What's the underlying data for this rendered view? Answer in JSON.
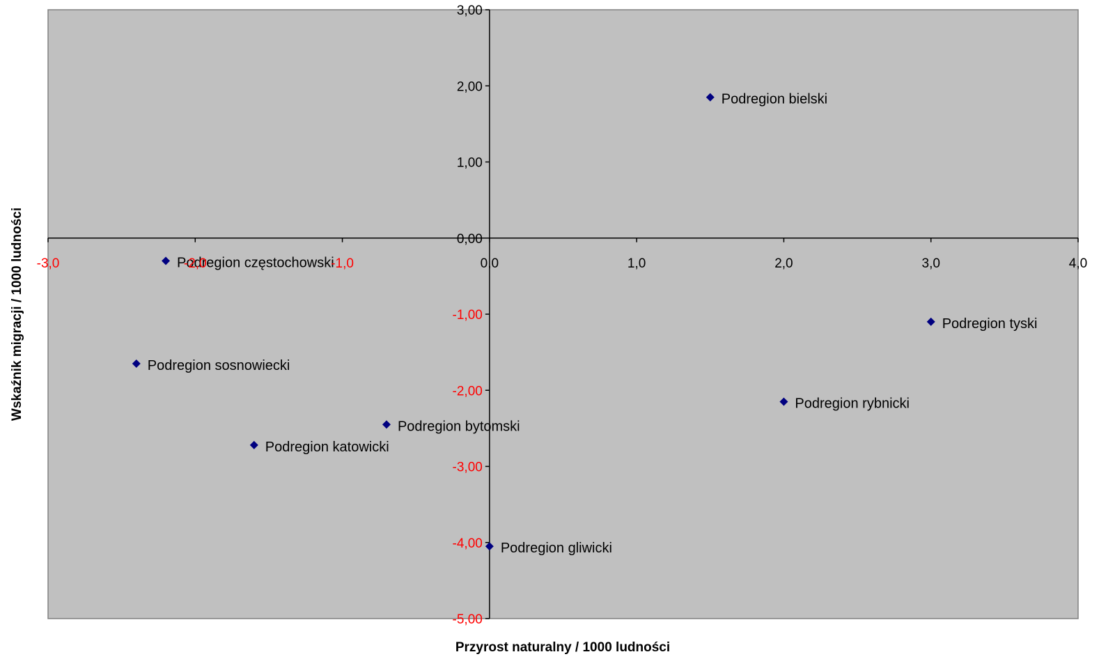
{
  "chart_data": {
    "type": "scatter",
    "title": "",
    "xlabel": "Przyrost naturalny / 1000 ludności",
    "ylabel": "Wskaźnik migracji / 1000 ludności",
    "xlim": [
      -3.0,
      4.0
    ],
    "ylim": [
      -5.0,
      3.0
    ],
    "x_ticks": [
      -3.0,
      -2.0,
      -1.0,
      0.0,
      1.0,
      2.0,
      3.0,
      4.0
    ],
    "x_tick_labels": [
      "-3,0",
      "-2,0",
      "-1,0",
      "0,0",
      "1,0",
      "2,0",
      "3,0",
      "4,0"
    ],
    "y_ticks": [
      3.0,
      2.0,
      1.0,
      0.0,
      -1.0,
      -2.0,
      -3.0,
      -4.0,
      -5.0
    ],
    "y_tick_labels": [
      "3,00",
      "2,00",
      "1,00",
      "0,00",
      "-1,00",
      "-2,00",
      "-3,00",
      "-4,00",
      "-5,00"
    ],
    "grid": false,
    "legend": "none",
    "colors": {
      "plot_background": "#c0c0c0",
      "marker": "#000080",
      "positive_tick": "#000000",
      "negative_tick": "#ff0000",
      "axis_line": "#000000"
    },
    "points": [
      {
        "label": "Podregion bielski",
        "x": 1.5,
        "y": 1.85
      },
      {
        "label": "Podregion częstochowski",
        "x": -2.2,
        "y": -0.3
      },
      {
        "label": "Podregion tyski",
        "x": 3.0,
        "y": -1.1
      },
      {
        "label": "Podregion sosnowiecki",
        "x": -2.4,
        "y": -1.65
      },
      {
        "label": "Podregion rybnicki",
        "x": 2.0,
        "y": -2.15
      },
      {
        "label": "Podregion bytomski",
        "x": -0.7,
        "y": -2.45
      },
      {
        "label": "Podregion katowicki",
        "x": -1.6,
        "y": -2.72
      },
      {
        "label": "Podregion gliwicki",
        "x": 0.0,
        "y": -4.05
      }
    ]
  }
}
